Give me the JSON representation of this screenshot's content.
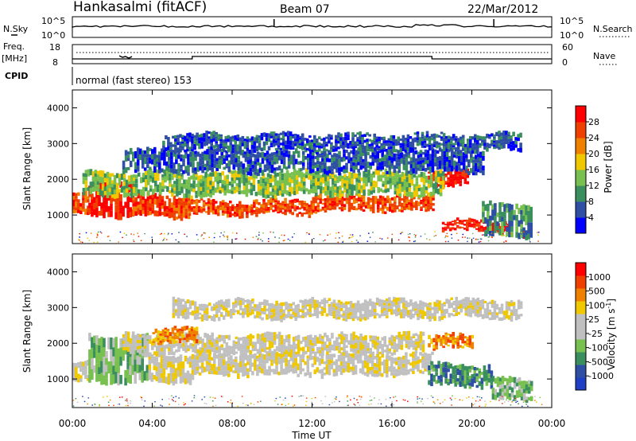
{
  "header": {
    "station": "Hankasalmi (fitACF)",
    "beam": "Beam 07",
    "date": "22/Mar/2012"
  },
  "colors": {
    "power_scale": [
      "#0000ff",
      "#2f4fa5",
      "#3b8f5e",
      "#78c050",
      "#f0c800",
      "#f08000",
      "#f04000",
      "#ff0000"
    ],
    "velocity_scale": [
      "#ff0000",
      "#f04000",
      "#f08000",
      "#f0c800",
      "#c0c0c0",
      "#c0c0c0",
      "#78c050",
      "#3b8f5e",
      "#2f4fa5",
      "#1f3fc5"
    ],
    "ground_scatter": "#c0c0c0"
  },
  "top_panel": {
    "left_label": "N.Sky",
    "right_label": "N.Search",
    "left_ticks": [
      "10^5",
      "10^0"
    ],
    "right_ticks": [
      "10^5",
      "10^0"
    ],
    "nsky_spike_hours": [
      10.1,
      21.1
    ]
  },
  "freq_panel": {
    "left_label": "Freq.",
    "left_unit": "[MHz]",
    "left_ticks": [
      "18",
      "8"
    ],
    "right_label": "Nave",
    "right_ticks": [
      "60",
      "0"
    ],
    "freq_steps": [
      {
        "from": 0,
        "to": 6,
        "value": 10.5
      },
      {
        "from": 6,
        "to": 18,
        "value": 11.8
      },
      {
        "from": 18,
        "to": 24,
        "value": 10.5
      }
    ]
  },
  "cpid": {
    "label": "CPID",
    "text": "normal (fast stereo) 153"
  },
  "chart_data": [
    {
      "type": "heatmap",
      "name": "power",
      "ylabel": "Slant Range [km]",
      "xlabel": "",
      "ylim": [
        200,
        4500
      ],
      "xlim": [
        0,
        24
      ],
      "x_ticks": [
        0,
        4,
        8,
        12,
        16,
        20,
        24
      ],
      "y_ticks": [
        1000,
        2000,
        3000,
        4000
      ],
      "colorbar": {
        "label": "Power [dB]",
        "range": [
          0,
          32
        ],
        "ticks": [
          "4",
          "8",
          "12",
          "16",
          "20",
          "24",
          "28"
        ]
      },
      "bands": [
        {
          "from": 0.0,
          "to": 0.8,
          "lo": 1000,
          "hi": 1600,
          "level": 6
        },
        {
          "from": 0.8,
          "to": 3.0,
          "lo": 950,
          "hi": 1950,
          "level": 7
        },
        {
          "from": 3.0,
          "to": 5.8,
          "lo": 950,
          "hi": 1550,
          "level": 6
        },
        {
          "from": 5.8,
          "to": 12.0,
          "lo": 1000,
          "hi": 1400,
          "level": 6
        },
        {
          "from": 12.0,
          "to": 18.0,
          "lo": 1100,
          "hi": 1550,
          "level": 6
        },
        {
          "from": 17.8,
          "to": 19.8,
          "lo": 1850,
          "hi": 2250,
          "level": 7
        },
        {
          "from": 18.5,
          "to": 21.8,
          "lo": 550,
          "hi": 850,
          "level": 7
        },
        {
          "from": 0.5,
          "to": 18.5,
          "lo": 1550,
          "hi": 2200,
          "level": 3
        },
        {
          "from": 2.5,
          "to": 20.5,
          "lo": 2200,
          "hi": 2800,
          "level": 1
        },
        {
          "from": 4.5,
          "to": 22.5,
          "lo": 2800,
          "hi": 3250,
          "level": 1
        },
        {
          "from": 20.5,
          "to": 23.0,
          "lo": 400,
          "hi": 1300,
          "level": 2
        }
      ]
    },
    {
      "type": "heatmap",
      "name": "velocity",
      "ylabel": "Slant Range [km]",
      "xlabel": "Time UT",
      "ylim": [
        200,
        4500
      ],
      "xlim": [
        0,
        24
      ],
      "x_ticks": [
        0,
        4,
        8,
        12,
        16,
        20,
        24
      ],
      "x_tick_labels": [
        "00:00",
        "04:00",
        "08:00",
        "12:00",
        "16:00",
        "20:00",
        "00:00"
      ],
      "y_ticks": [
        1000,
        2000,
        3000,
        4000
      ],
      "colorbar": {
        "label": "Velocity [m s^-1]",
        "ticks": [
          "1000",
          "500",
          "100",
          "25",
          "-25",
          "-100",
          "-500",
          "-1000"
        ]
      },
      "bands": [
        {
          "from": 0.0,
          "to": 0.8,
          "lo": 900,
          "hi": 1500,
          "level": 4
        },
        {
          "from": 0.8,
          "to": 3.8,
          "lo": 900,
          "hi": 2200,
          "level": 6
        },
        {
          "from": 3.8,
          "to": 6.2,
          "lo": 900,
          "hi": 1700,
          "level": 4
        },
        {
          "from": 6.2,
          "to": 18.0,
          "lo": 1100,
          "hi": 1700,
          "level": 4
        },
        {
          "from": 2.5,
          "to": 17.5,
          "lo": 1700,
          "hi": 2250,
          "level": 4
        },
        {
          "from": 4.0,
          "to": 6.2,
          "lo": 2000,
          "hi": 2400,
          "level": 2
        },
        {
          "from": 5.0,
          "to": 22.5,
          "lo": 2700,
          "hi": 3200,
          "level": 4
        },
        {
          "from": 17.8,
          "to": 20.0,
          "lo": 1850,
          "hi": 2200,
          "level": 2
        },
        {
          "from": 17.8,
          "to": 21.0,
          "lo": 800,
          "hi": 1400,
          "level": 7
        },
        {
          "from": 21.0,
          "to": 23.0,
          "lo": 400,
          "hi": 1000,
          "level": 6
        }
      ]
    }
  ]
}
